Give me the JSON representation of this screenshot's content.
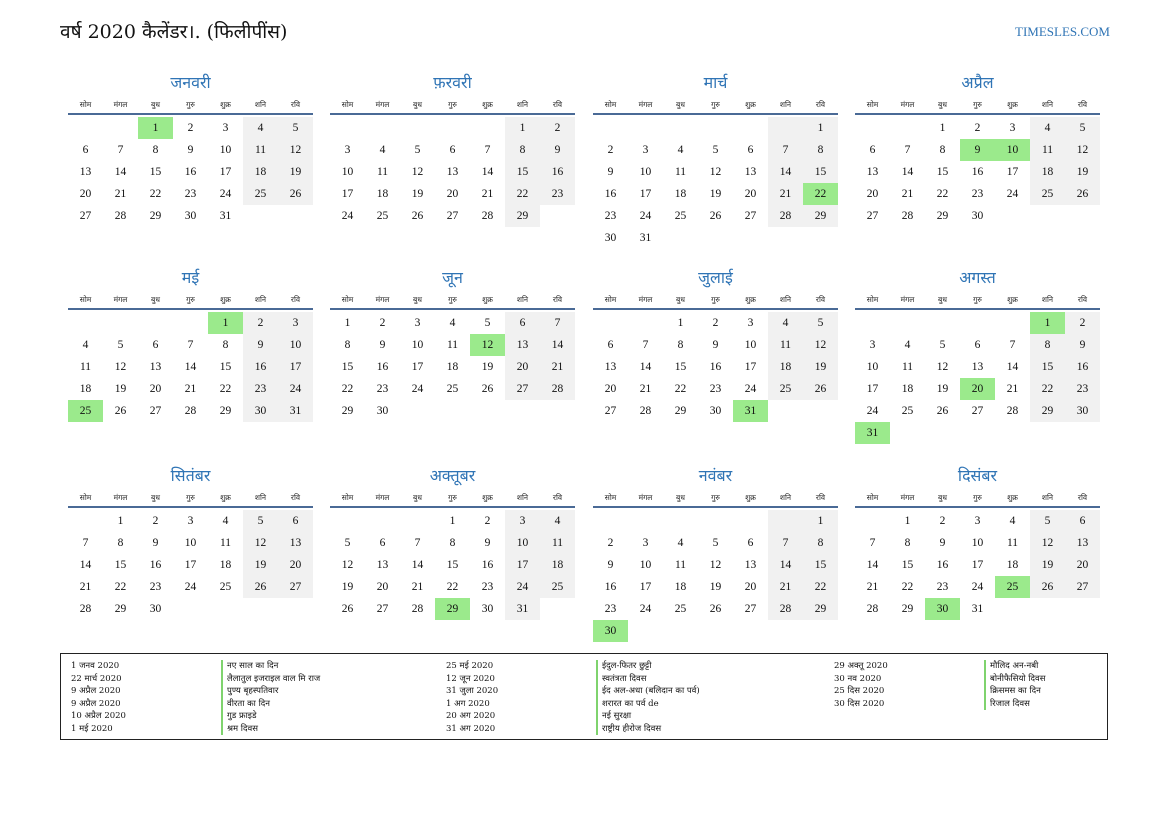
{
  "title": "वर्ष 2020 कैलेंडर।. (फिलीपींस)",
  "site": "TIMESLES.COM",
  "weekdays": [
    "सोम",
    "मंगल",
    "बुध",
    "गुरु",
    "शुक्र",
    "शनि",
    "रवि"
  ],
  "months": [
    {
      "name": "जनवरी",
      "offset": 2,
      "days": 31,
      "holidays": [
        1
      ]
    },
    {
      "name": "फ़रवरी",
      "offset": 5,
      "days": 29,
      "holidays": []
    },
    {
      "name": "मार्च",
      "offset": 6,
      "days": 31,
      "holidays": [
        22
      ]
    },
    {
      "name": "अप्रैल",
      "offset": 2,
      "days": 30,
      "holidays": [
        9,
        10
      ]
    },
    {
      "name": "मई",
      "offset": 4,
      "days": 31,
      "holidays": [
        1,
        25
      ]
    },
    {
      "name": "जून",
      "offset": 0,
      "days": 30,
      "holidays": [
        12
      ]
    },
    {
      "name": "जुलाई",
      "offset": 2,
      "days": 31,
      "holidays": [
        31
      ]
    },
    {
      "name": "अगस्त",
      "offset": 5,
      "days": 31,
      "holidays": [
        1,
        20,
        31
      ]
    },
    {
      "name": "सितंबर",
      "offset": 1,
      "days": 30,
      "holidays": []
    },
    {
      "name": "अक्तूबर",
      "offset": 3,
      "days": 31,
      "holidays": [
        29
      ]
    },
    {
      "name": "नवंबर",
      "offset": 6,
      "days": 30,
      "holidays": [
        30
      ]
    },
    {
      "name": "दिसंबर",
      "offset": 1,
      "days": 31,
      "holidays": [
        25,
        30
      ]
    }
  ],
  "holiday_list": [
    [
      {
        "date": "1 जनव 2020",
        "name": "नए साल का दिन"
      },
      {
        "date": "22 मार्च 2020",
        "name": "लैलातुल इजराइल वाल मि राज"
      },
      {
        "date": "9 अप्रैल 2020",
        "name": "पुण्य बृहस्पतिवार"
      },
      {
        "date": "9 अप्रैल 2020",
        "name": "वीरता का दिन"
      },
      {
        "date": "10 अप्रैल 2020",
        "name": "गुड फ्राइडे"
      },
      {
        "date": "1 मई 2020",
        "name": "श्रम दिवस"
      }
    ],
    [
      {
        "date": "25 मई 2020",
        "name": "ईदुल-फितर छुट्टी"
      },
      {
        "date": "12 जून 2020",
        "name": "स्वतंत्रता दिवस"
      },
      {
        "date": "31 जुला 2020",
        "name": "ईद अल-अधा (बलिदान का पर्व)"
      },
      {
        "date": "1 अग 2020",
        "name": "शरारत का पर्व de"
      },
      {
        "date": "20 अग 2020",
        "name": "नई सुरक्षा"
      },
      {
        "date": "31 अग 2020",
        "name": "राष्ट्रीय हीरोज दिवस"
      }
    ],
    [
      {
        "date": "29 अक्तू 2020",
        "name": "मौलिद अन-नबी"
      },
      {
        "date": "30 नव 2020",
        "name": "बोनीफैसियो दिवस"
      },
      {
        "date": "25 दिस 2020",
        "name": "क्रिसमस का दिन"
      },
      {
        "date": "30 दिस 2020",
        "name": "रिजाल दिवस"
      }
    ]
  ]
}
